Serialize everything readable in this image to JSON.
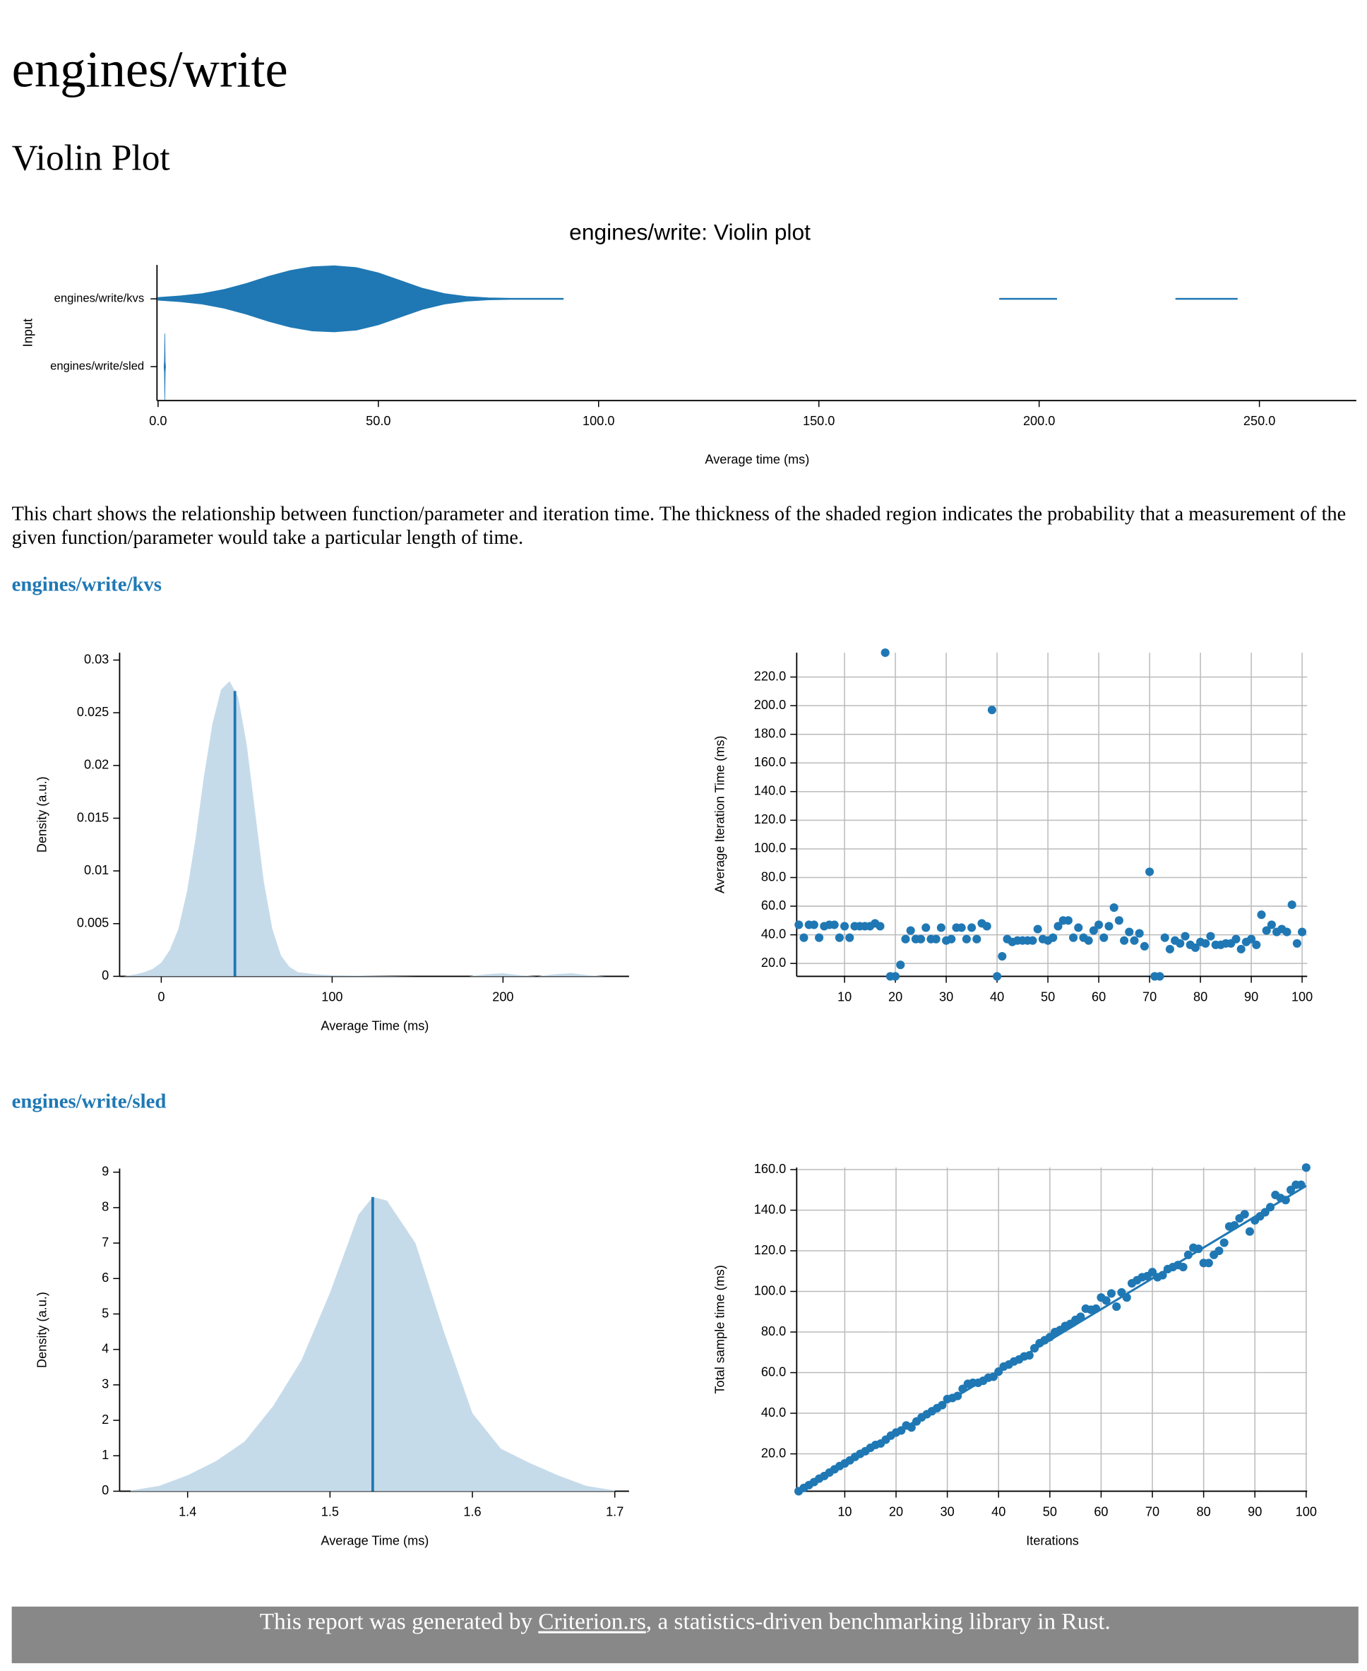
{
  "header": {
    "title": "engines/write"
  },
  "violin_heading": "Violin Plot",
  "description": "This chart shows the relationship between function/parameter and iteration time. The thickness of the shaded region indicates the probability that a measurement of the given function/parameter would take a particular length of time.",
  "sections": [
    {
      "heading": "engines/write/kvs"
    },
    {
      "heading": "engines/write/sled"
    }
  ],
  "footer": {
    "prefix": "This report was generated by ",
    "link": "Criterion.rs",
    "suffix": ", a statistics-driven benchmarking library in Rust."
  },
  "chart_data": [
    {
      "type": "violin",
      "title": "engines/write: Violin plot",
      "x_label": "Average time (ms)",
      "y_label": "Input",
      "categories": [
        "engines/write/kvs",
        "engines/write/sled"
      ],
      "color": "#1f78b4",
      "violins": [
        {
          "x": [
            0,
            5,
            10,
            15,
            20,
            25,
            30,
            35,
            40,
            45,
            50,
            55,
            60,
            65,
            70,
            75,
            80,
            85,
            92,
            150,
            191,
            204,
            220,
            231,
            245
          ],
          "values": [
            0.0012,
            0.0025,
            0.0045,
            0.008,
            0.013,
            0.019,
            0.024,
            0.0272,
            0.028,
            0.0265,
            0.022,
            0.0155,
            0.009,
            0.0045,
            0.002,
            0.0009,
            0.0004,
            0.0002,
            0.0001,
            null,
            0.0001,
            0.0001,
            null,
            0.0001,
            0.0001
          ]
        },
        {
          "x": [
            1.36,
            1.44,
            1.48,
            1.53,
            1.58,
            1.62,
            1.7
          ],
          "values": [
            0.02,
            1.4,
            3.7,
            8.3,
            4.5,
            1.2,
            0.02
          ]
        }
      ],
      "xlim": [
        0,
        272
      ],
      "xticks": [
        {
          "value": 0,
          "label": "0.0"
        },
        {
          "value": 50,
          "label": "50.0"
        },
        {
          "value": 100,
          "label": "100.0"
        },
        {
          "value": 150,
          "label": "150.0"
        },
        {
          "value": 200,
          "label": "200.0"
        },
        {
          "value": 250,
          "label": "250.0"
        }
      ]
    },
    {
      "type": "density",
      "x_label": "Average Time (ms)",
      "y_label": "Density (a.u.)",
      "color": "#c6dbea",
      "line_color": "#1f78b4",
      "x": [
        -22,
        -15,
        -10,
        -5,
        0,
        5,
        10,
        15,
        20,
        25,
        30,
        35,
        40,
        45,
        50,
        55,
        60,
        65,
        70,
        75,
        80,
        90,
        100,
        120,
        150,
        180,
        190,
        200,
        210,
        220,
        230,
        240,
        250,
        260,
        270
      ],
      "values": [
        0,
        0.0002,
        0.0004,
        0.0007,
        0.0013,
        0.0025,
        0.0045,
        0.008,
        0.013,
        0.019,
        0.024,
        0.0272,
        0.028,
        0.0265,
        0.022,
        0.0155,
        0.009,
        0.0045,
        0.002,
        0.0009,
        0.0004,
        0.0002,
        0.0001,
        5e-05,
        0,
        0,
        0.0002,
        0.0003,
        0.0001,
        0,
        0.0002,
        0.0003,
        0.0001,
        0,
        0
      ],
      "mean": 43.1,
      "xlim": [
        -23.75,
        273.75
      ],
      "xticks": [
        0,
        100,
        200
      ],
      "ylim": [
        0,
        0.0307
      ],
      "yticks": [
        0,
        0.005,
        0.01,
        0.015,
        0.02,
        0.025,
        0.03
      ]
    },
    {
      "type": "scatter",
      "y_label": "Average Iteration Time (ms)",
      "color": "#1f78b4",
      "grid": true,
      "x": [
        1,
        2,
        3,
        4,
        5,
        6,
        7,
        8,
        9,
        10,
        11,
        12,
        13,
        14,
        15,
        16,
        17,
        18,
        19,
        20,
        21,
        22,
        23,
        24,
        25,
        26,
        27,
        28,
        29,
        30,
        31,
        32,
        33,
        34,
        35,
        36,
        37,
        38,
        39,
        40,
        41,
        42,
        43,
        44,
        45,
        46,
        47,
        48,
        49,
        50,
        51,
        52,
        53,
        54,
        55,
        56,
        57,
        58,
        59,
        60,
        61,
        62,
        63,
        64,
        65,
        66,
        67,
        68,
        69,
        70,
        71,
        72,
        73,
        74,
        75,
        76,
        77,
        78,
        79,
        80,
        81,
        82,
        83,
        84,
        85,
        86,
        87,
        88,
        89,
        90,
        91,
        92,
        93,
        94,
        95,
        96,
        97,
        98,
        99,
        100
      ],
      "values": [
        47,
        38,
        47,
        47,
        38,
        46,
        47,
        47,
        38,
        46,
        38,
        46,
        46,
        46,
        46,
        48,
        46,
        237,
        11,
        11,
        19,
        37,
        43,
        37,
        37,
        45,
        37,
        37,
        45,
        36,
        37,
        45,
        45,
        37,
        45,
        37,
        48,
        46,
        197,
        11,
        25,
        37,
        35,
        36,
        36,
        36,
        36,
        44,
        37,
        36,
        38,
        46,
        50,
        50,
        38,
        45,
        38,
        36,
        43,
        47,
        38,
        46,
        59,
        50,
        36,
        42,
        36,
        41,
        32,
        84,
        11,
        11,
        38,
        30,
        36,
        34,
        39,
        33,
        31,
        35,
        34,
        39,
        33,
        33,
        34,
        34,
        37,
        30,
        35,
        37,
        33,
        54,
        43,
        47,
        42,
        44,
        42,
        61,
        34,
        42
      ],
      "xlim": [
        0.8,
        101
      ],
      "xticks": [
        10,
        20,
        30,
        40,
        50,
        60,
        70,
        80,
        90,
        100
      ],
      "ylim": [
        11,
        237
      ],
      "yticks": [
        {
          "value": 20,
          "label": "20.0"
        },
        {
          "value": 40,
          "label": "40.0"
        },
        {
          "value": 60,
          "label": "60.0"
        },
        {
          "value": 80,
          "label": "80.0"
        },
        {
          "value": 100,
          "label": "100.0"
        },
        {
          "value": 120,
          "label": "120.0"
        },
        {
          "value": 140,
          "label": "140.0"
        },
        {
          "value": 160,
          "label": "160.0"
        },
        {
          "value": 180,
          "label": "180.0"
        },
        {
          "value": 200,
          "label": "200.0"
        },
        {
          "value": 220,
          "label": "220.0"
        }
      ]
    },
    {
      "type": "density",
      "x_label": "Average Time (ms)",
      "y_label": "Density (a.u.)",
      "color": "#c6dbea",
      "line_color": "#1f78b4",
      "x": [
        1.36,
        1.38,
        1.4,
        1.42,
        1.44,
        1.46,
        1.48,
        1.5,
        1.52,
        1.53,
        1.54,
        1.56,
        1.58,
        1.6,
        1.62,
        1.64,
        1.66,
        1.68,
        1.7
      ],
      "values": [
        0.02,
        0.15,
        0.45,
        0.85,
        1.4,
        2.4,
        3.7,
        5.6,
        7.8,
        8.3,
        8.2,
        7.0,
        4.5,
        2.2,
        1.2,
        0.8,
        0.45,
        0.15,
        0.02
      ],
      "mean": 1.53,
      "xlim": [
        1.353,
        1.71
      ],
      "xticks": [
        1.4,
        1.5,
        1.6,
        1.7
      ],
      "ylim": [
        0,
        9.1
      ],
      "yticks": [
        0,
        1,
        2,
        3,
        4,
        5,
        6,
        7,
        8,
        9
      ]
    },
    {
      "type": "regression",
      "x_label": "Iterations",
      "y_label": "Total sample time (ms)",
      "color": "#1f78b4",
      "grid": true,
      "x": [
        1,
        2,
        3,
        4,
        5,
        6,
        7,
        8,
        9,
        10,
        11,
        12,
        13,
        14,
        15,
        16,
        17,
        18,
        19,
        20,
        21,
        22,
        23,
        24,
        25,
        26,
        27,
        28,
        29,
        30,
        31,
        32,
        33,
        34,
        35,
        36,
        37,
        38,
        39,
        40,
        41,
        42,
        43,
        44,
        45,
        46,
        47,
        48,
        49,
        50,
        51,
        52,
        53,
        54,
        55,
        56,
        57,
        58,
        59,
        60,
        61,
        62,
        63,
        64,
        65,
        66,
        67,
        68,
        69,
        70,
        71,
        72,
        73,
        74,
        75,
        76,
        77,
        78,
        79,
        80,
        81,
        82,
        83,
        84,
        85,
        86,
        87,
        88,
        89,
        90,
        91,
        92,
        93,
        94,
        95,
        96,
        97,
        98,
        99,
        100
      ],
      "values": [
        1.6,
        3.2,
        4.6,
        6.1,
        7.8,
        9.1,
        10.8,
        12.4,
        14.0,
        15.3,
        16.8,
        18.5,
        20.0,
        21.3,
        23.0,
        24.4,
        25.1,
        27.0,
        29.0,
        30.5,
        31.5,
        34.0,
        33.0,
        36.0,
        38.0,
        39.5,
        41.0,
        42.5,
        44.0,
        47.0,
        47.5,
        48.5,
        52.0,
        54.5,
        55.0,
        55.0,
        56.0,
        57.5,
        58.0,
        60.5,
        63.0,
        64.0,
        65.5,
        66.5,
        68.0,
        68.5,
        72.0,
        74.5,
        76.0,
        77.5,
        80.0,
        81.0,
        83.0,
        84.0,
        86.0,
        87.5,
        91.5,
        91.0,
        91.5,
        97.0,
        95.5,
        99.0,
        92.5,
        99.5,
        97.0,
        104.0,
        105.5,
        107.0,
        107.5,
        109.5,
        107.0,
        108.0,
        111.0,
        112.0,
        113.0,
        112.0,
        118.0,
        121.5,
        121.0,
        114.0,
        114.0,
        118.0,
        120.0,
        124.0,
        132.0,
        132.5,
        136.0,
        138.0,
        129.5,
        135.0,
        137.0,
        139.0,
        141.5,
        147.5,
        146.0,
        145.0,
        150.0,
        152.5,
        152.5,
        161.0
      ],
      "fit": {
        "x": [
          1,
          100
        ],
        "values": [
          1.53,
          152
        ]
      },
      "xlim": [
        0.83,
        100.2
      ],
      "xticks": [
        10,
        20,
        30,
        40,
        50,
        60,
        70,
        80,
        90,
        100
      ],
      "ylim": [
        1.6,
        161
      ],
      "yticks": [
        {
          "value": 20,
          "label": "20.0"
        },
        {
          "value": 40,
          "label": "40.0"
        },
        {
          "value": 60,
          "label": "60.0"
        },
        {
          "value": 80,
          "label": "80.0"
        },
        {
          "value": 100,
          "label": "100.0"
        },
        {
          "value": 120,
          "label": "120.0"
        },
        {
          "value": 140,
          "label": "140.0"
        },
        {
          "value": 160,
          "label": "160.0"
        }
      ]
    }
  ]
}
